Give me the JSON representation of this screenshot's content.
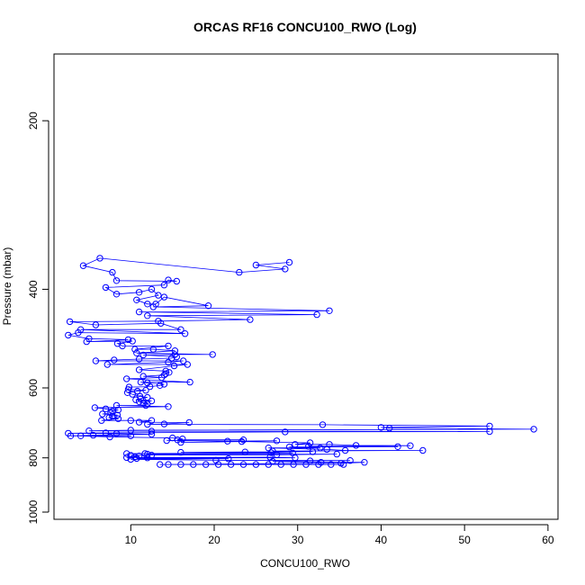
{
  "chart_data": {
    "type": "line",
    "title": "ORCAS RF16 CONCU100_RWO (Log)",
    "xlabel": "CONCU100_RWO",
    "ylabel": "Pressure (mbar)",
    "xlim": [
      0.8,
      61.2
    ],
    "ylim": [
      1030,
      152
    ],
    "y_scale": "log",
    "y_inverted": true,
    "xticks": [
      10,
      20,
      30,
      40,
      50,
      60
    ],
    "yticks": [
      200,
      400,
      600,
      800,
      1000
    ],
    "grid": false,
    "legend": "none",
    "series_color": "#0000ff",
    "marker": "open-circle",
    "series": [
      {
        "points": [
          [
            29.0,
            358
          ],
          [
            25.0,
            362
          ],
          [
            28.5,
            368
          ],
          [
            23.0,
            373
          ],
          [
            6.3,
            352
          ],
          [
            4.3,
            363
          ],
          [
            7.8,
            373
          ],
          [
            8.3,
            386
          ],
          [
            15.5,
            387
          ],
          [
            14.5,
            385
          ],
          [
            14.0,
            393
          ],
          [
            7.0,
            397
          ],
          [
            8.3,
            408
          ],
          [
            11.0,
            405
          ],
          [
            12.5,
            400
          ],
          [
            13.3,
            410
          ],
          [
            10.7,
            418
          ],
          [
            12.0,
            425
          ],
          [
            13.0,
            425
          ],
          [
            14.0,
            413
          ],
          [
            19.3,
            428
          ],
          [
            12.7,
            430
          ],
          [
            33.8,
            437
          ],
          [
            11.0,
            439
          ],
          [
            32.3,
            444
          ],
          [
            12.0,
            446
          ],
          [
            24.3,
            453
          ],
          [
            13.3,
            456
          ],
          [
            2.7,
            457
          ],
          [
            5.8,
            463
          ],
          [
            13.6,
            460
          ],
          [
            16.0,
            472
          ],
          [
            4.0,
            472
          ],
          [
            16.5,
            480
          ],
          [
            3.7,
            478
          ],
          [
            2.5,
            483
          ],
          [
            5.0,
            490
          ],
          [
            9.7,
            492
          ],
          [
            4.7,
            496
          ],
          [
            10.2,
            495
          ],
          [
            8.4,
            500
          ],
          [
            9.0,
            505
          ],
          [
            14.5,
            505
          ],
          [
            10.5,
            512
          ],
          [
            12.7,
            512
          ],
          [
            15.3,
            515
          ],
          [
            10.7,
            520
          ],
          [
            19.8,
            523
          ],
          [
            15.3,
            523
          ],
          [
            11.5,
            524
          ],
          [
            15.5,
            528
          ],
          [
            14.9,
            531
          ],
          [
            11.0,
            533
          ],
          [
            8.0,
            535
          ],
          [
            5.8,
            537
          ],
          [
            16.3,
            537
          ],
          [
            14.5,
            540
          ],
          [
            7.2,
            545
          ],
          [
            16.8,
            545
          ],
          [
            15.2,
            548
          ],
          [
            11.0,
            557
          ],
          [
            14.2,
            560
          ],
          [
            14.6,
            563
          ],
          [
            14.2,
            566
          ],
          [
            14.0,
            569
          ],
          [
            11.5,
            572
          ],
          [
            13.7,
            575
          ],
          [
            9.5,
            578
          ],
          [
            17.1,
            586
          ],
          [
            11.2,
            586
          ],
          [
            12.0,
            588
          ],
          [
            14.0,
            591
          ],
          [
            13.5,
            594
          ],
          [
            12.3,
            597
          ],
          [
            9.8,
            598
          ],
          [
            9.7,
            604
          ],
          [
            11.8,
            606
          ],
          [
            10.8,
            608
          ],
          [
            9.6,
            612
          ],
          [
            10.2,
            616
          ],
          [
            11.1,
            621
          ],
          [
            12.0,
            624
          ],
          [
            11.2,
            627
          ],
          [
            10.6,
            630
          ],
          [
            12.5,
            633
          ],
          [
            11.0,
            635
          ],
          [
            11.5,
            638
          ],
          [
            12.0,
            641
          ],
          [
            11.8,
            645
          ],
          [
            8.3,
            645
          ],
          [
            14.5,
            648
          ],
          [
            5.7,
            651
          ],
          [
            7.0,
            654
          ],
          [
            8.5,
            657
          ],
          [
            7.8,
            660
          ],
          [
            7.6,
            665
          ],
          [
            6.6,
            668
          ],
          [
            8.4,
            671
          ],
          [
            7.8,
            674
          ],
          [
            7.4,
            678
          ],
          [
            8.5,
            681
          ],
          [
            6.5,
            686
          ],
          [
            10.0,
            686
          ],
          [
            12.5,
            686
          ],
          [
            11.0,
            691
          ],
          [
            17.0,
            692
          ],
          [
            14.0,
            696
          ],
          [
            12.0,
            697
          ],
          [
            33.0,
            698
          ],
          [
            53.0,
            702
          ],
          [
            40.0,
            706
          ],
          [
            41.0,
            708
          ],
          [
            58.3,
            711
          ],
          [
            10.0,
            714
          ],
          [
            5.0,
            716
          ],
          [
            12.5,
            717
          ],
          [
            53.0,
            718
          ],
          [
            28.5,
            719
          ],
          [
            7.0,
            722
          ],
          [
            2.5,
            723
          ],
          [
            8.3,
            724
          ],
          [
            12.5,
            726
          ],
          [
            5.5,
            729
          ],
          [
            2.8,
            731
          ],
          [
            10.0,
            731
          ],
          [
            4.0,
            731
          ],
          [
            7.5,
            734
          ],
          [
            15.0,
            737
          ],
          [
            16.2,
            740
          ],
          [
            15.6,
            743
          ],
          [
            23.5,
            743
          ],
          [
            14.3,
            745
          ],
          [
            21.6,
            747
          ],
          [
            27.5,
            746
          ],
          [
            16.0,
            751
          ],
          [
            23.3,
            748
          ],
          [
            31.5,
            752
          ],
          [
            29.7,
            757
          ],
          [
            33.8,
            757
          ],
          [
            37.0,
            760
          ],
          [
            43.5,
            761
          ],
          [
            31.3,
            763
          ],
          [
            42.0,
            764
          ],
          [
            29.0,
            765
          ],
          [
            32.7,
            768
          ],
          [
            26.5,
            768
          ],
          [
            33.5,
            773
          ],
          [
            35.7,
            776
          ],
          [
            45.0,
            776
          ],
          [
            27.0,
            778
          ],
          [
            31.8,
            780
          ],
          [
            23.7,
            781
          ],
          [
            16.0,
            782
          ],
          [
            26.8,
            783
          ],
          [
            29.4,
            784
          ],
          [
            9.5,
            786
          ],
          [
            11.7,
            786
          ],
          [
            12.0,
            788
          ],
          [
            34.7,
            788
          ],
          [
            27.5,
            790
          ],
          [
            12.5,
            791
          ],
          [
            10.0,
            792
          ],
          [
            11.0,
            794
          ],
          [
            10.5,
            797
          ],
          [
            9.5,
            799
          ],
          [
            26.7,
            798
          ],
          [
            29.7,
            800
          ],
          [
            12.0,
            800
          ],
          [
            10.7,
            802
          ],
          [
            21.7,
            803
          ],
          [
            10.0,
            805
          ],
          [
            20.2,
            808
          ],
          [
            36.3,
            809
          ],
          [
            31.5,
            810
          ],
          [
            27.0,
            812
          ],
          [
            32.8,
            815
          ],
          [
            38.0,
            815
          ],
          [
            35.2,
            818
          ],
          [
            13.5,
            822
          ],
          [
            14.5,
            822
          ],
          [
            16.0,
            822
          ],
          [
            17.5,
            822
          ],
          [
            19.0,
            822
          ],
          [
            20.5,
            822
          ],
          [
            22.0,
            822
          ],
          [
            23.5,
            822
          ],
          [
            25.0,
            822
          ],
          [
            26.5,
            822
          ],
          [
            28.0,
            822
          ],
          [
            29.5,
            822
          ],
          [
            31.0,
            822
          ],
          [
            32.5,
            822
          ],
          [
            34.0,
            822
          ],
          [
            35.5,
            822
          ]
        ]
      }
    ]
  }
}
